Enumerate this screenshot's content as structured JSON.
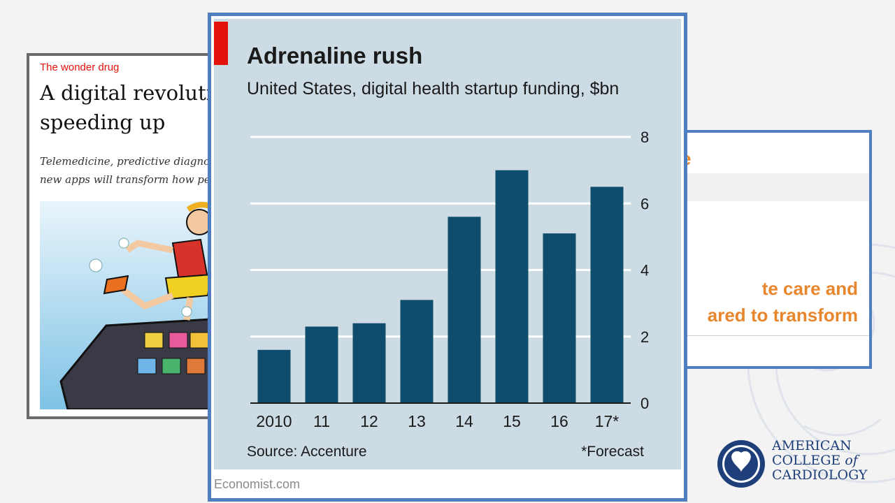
{
  "article": {
    "kicker": "The wonder drug",
    "headline": "A digital revolutio\nspeeding up",
    "dek": "Telemedicine, predictive diagnos\nnew apps will transform how peo"
  },
  "slide": {
    "title_fragment": "e",
    "body": "te care and\nared to transform"
  },
  "chart": {
    "title": "Adrenaline rush",
    "subtitle": "United States, digital health startup funding, $bn",
    "source": "Source: Accenture",
    "footnote": "*Forecast",
    "credit": "Economist.com"
  },
  "chart_data": {
    "type": "bar",
    "categories": [
      "2010",
      "11",
      "12",
      "13",
      "14",
      "15",
      "16",
      "17*"
    ],
    "values": [
      1.6,
      2.3,
      2.4,
      3.1,
      5.6,
      7.0,
      5.1,
      6.5
    ],
    "title": "Adrenaline rush",
    "subtitle": "United States, digital health startup funding, $bn",
    "xlabel": "",
    "ylabel": "",
    "ylim": [
      0,
      8
    ],
    "yticks": [
      0,
      2,
      4,
      6,
      8
    ],
    "grid": true,
    "bar_color": "#0e4d6e",
    "background_color": "#cddbe5"
  },
  "logo": {
    "line1": "AMERICAN",
    "line2_a": "COLLEGE",
    "line2_b": "of",
    "line3": "CARDIOLOGY"
  },
  "colors": {
    "accent_red": "#e3120b",
    "frame_blue": "#4f7fc0",
    "slide_orange": "#e8862e",
    "acc_navy": "#1f3f7a"
  }
}
